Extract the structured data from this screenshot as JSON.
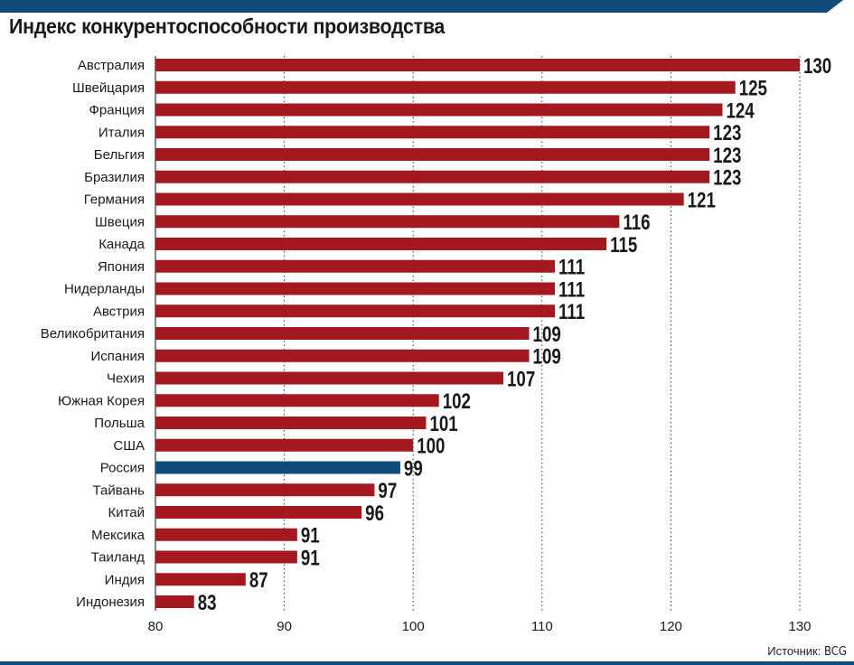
{
  "title": "Индекс конкурентоспособности производства",
  "source": {
    "label": "Источник:",
    "value": "BCG"
  },
  "colors": {
    "bar": "#a3191f",
    "highlight": "#0f4c7c",
    "grid": "#333333",
    "header": "#0f4c7c"
  },
  "chart_data": {
    "type": "bar",
    "orientation": "horizontal",
    "title": "Индекс конкурентоспособности производства",
    "categories": [
      "Австралия",
      "Швейцария",
      "Франция",
      "Италия",
      "Бельгия",
      "Бразилия",
      "Германия",
      "Швеция",
      "Канада",
      "Япония",
      "Нидерланды",
      "Австрия",
      "Великобритания",
      "Испания",
      "Чехия",
      "Южная Корея",
      "Польша",
      "США",
      "Россия",
      "Тайвань",
      "Китай",
      "Мексика",
      "Таиланд",
      "Индия",
      "Индонезия"
    ],
    "values": [
      130,
      125,
      124,
      123,
      123,
      123,
      121,
      116,
      115,
      111,
      111,
      111,
      109,
      109,
      107,
      102,
      101,
      100,
      99,
      97,
      96,
      91,
      91,
      87,
      83
    ],
    "highlight": "Россия",
    "xlim": [
      80,
      130
    ],
    "xticks": [
      80,
      90,
      100,
      110,
      120,
      130
    ],
    "grid": "vertical dotted",
    "data_labels": true
  }
}
